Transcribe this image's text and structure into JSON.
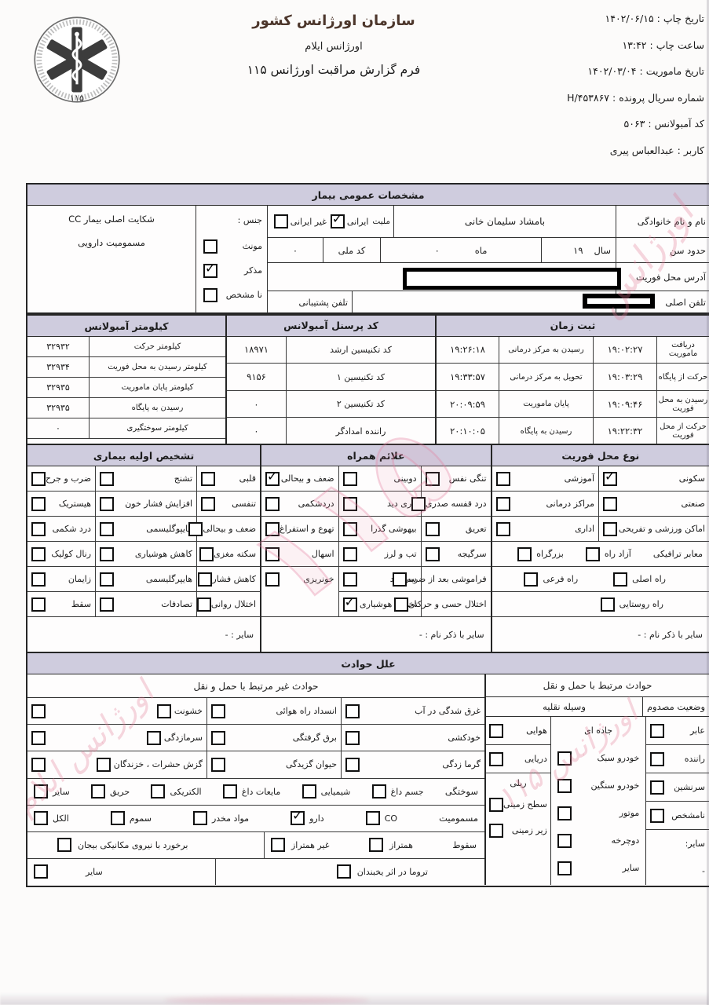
{
  "watermarks": [
    "۱۱۵",
    "اورژانس",
    "اورژانس ۱۱۵",
    "اورژانس ایلام"
  ],
  "header": {
    "org": "سازمان اورژانس کشور",
    "region": "اورژانس ایلام",
    "form": "فرم گزارش مراقبت اورژانس ۱۱۵",
    "logo_number": "۱۱۵"
  },
  "meta": {
    "rows": [
      {
        "label": "تاریخ چاپ",
        "value": "۱۴۰۲/۰۶/۱۵"
      },
      {
        "label": "ساعت چاپ",
        "value": "۱۳:۴۲"
      },
      {
        "label": "تاریخ ماموریت",
        "value": "۱۴۰۲/۰۳/۰۴"
      },
      {
        "label": "شماره سریال پرونده",
        "value": "H/۴۵۳۸۶۷"
      },
      {
        "label": "کد آمبولانس",
        "value": "۵۰۶۳"
      },
      {
        "label": "کاربر",
        "value": "عبدالعباس پیری"
      }
    ]
  },
  "patient": {
    "title": "مشخصات عمومی بیمار",
    "name_label": "نام و نام خانوادگی",
    "name_value": "بامشاد سلیمان خانی",
    "nat_label": "ملیت",
    "nat_iranian": {
      "l": "ایرانی",
      "c": true
    },
    "nat_foreign": {
      "l": "غیر ایرانی",
      "c": false
    },
    "age_label": "حدود سن",
    "year_label": "سال",
    "year_value": "۱۹",
    "month_label": "ماه",
    "month_value": "۰",
    "nid_label": "کد ملی",
    "nid_value": "۰",
    "address_label": "آدرس محل فوریت",
    "phone_label": "تلفن اصلی",
    "support_phone_label": "تلفن پشتیبانی",
    "gender_label": "جنس :",
    "genders": [
      {
        "l": "مونث",
        "c": false
      },
      {
        "l": "مذکر",
        "c": true
      },
      {
        "l": "نا مشخص",
        "c": false
      }
    ],
    "cc_label": "شکایت اصلی بیمار CC",
    "cc_value": "مسمومیت دارویی"
  },
  "time_log": {
    "title": "ثبت زمان",
    "rows": [
      {
        "l1": "دریافت ماموریت",
        "v1": "۱۹:۰۲:۲۷",
        "l2": "رسیدن به مرکز درمانی",
        "v2": "۱۹:۲۶:۱۸"
      },
      {
        "l1": "حرکت از پایگاه",
        "v1": "۱۹:۰۳:۲۹",
        "l2": "تحویل به مرکز درمانی",
        "v2": "۱۹:۳۳:۵۷"
      },
      {
        "l1": "رسیدن به محل فوریت",
        "v1": "۱۹:۰۹:۴۶",
        "l2": "پایان ماموریت",
        "v2": "۲۰:۰۹:۵۹"
      },
      {
        "l1": "حرکت از محل فوریت",
        "v1": "۱۹:۲۲:۳۲",
        "l2": "رسیدن به پایگاه",
        "v2": "۲۰:۱۰:۰۵"
      }
    ]
  },
  "personnel": {
    "title": "کد پرسنل آمبولانس",
    "rows": [
      {
        "l": "کد تکنیسین ارشد",
        "v": "۱۸۹۷۱"
      },
      {
        "l": "کد تکنیسین ۱",
        "v": "۹۱۵۶"
      },
      {
        "l": "کد تکنیسین ۲",
        "v": "۰"
      },
      {
        "l": "راننده امدادگر",
        "v": "۰"
      }
    ]
  },
  "odometer": {
    "title": "کیلومتر آمبولانس",
    "rows": [
      {
        "l": "کیلومتر حرکت",
        "v": "۳۲۹۳۲"
      },
      {
        "l": "کیلومتر رسیدن به محل فوریت",
        "v": "۳۲۹۳۴"
      },
      {
        "l": "کیلومتر پایان ماموریت",
        "v": "۳۲۹۳۵"
      },
      {
        "l": "رسیدن به پایگاه",
        "v": "۳۲۹۳۵"
      },
      {
        "l": "کیلومتر سوختگیری",
        "v": "۰"
      }
    ]
  },
  "diagnosis": {
    "title": "تشخیص اولیه بیماری",
    "right": [
      {
        "l": "قلبی",
        "c": false
      },
      {
        "l": "تنفسی",
        "c": false
      },
      {
        "l": "ضعف و بیحالی",
        "c": false
      },
      {
        "l": "سکته مغزی",
        "c": false
      },
      {
        "l": "کاهش فشار",
        "c": false
      },
      {
        "l": "اختلال روانی",
        "c": false
      }
    ],
    "mid": [
      {
        "l": "تشنج",
        "c": false
      },
      {
        "l": "افزایش فشار خون",
        "c": false
      },
      {
        "l": "هایپوگلیسمی",
        "c": false
      },
      {
        "l": "کاهش هوشیاری",
        "c": false
      },
      {
        "l": "هایپرگلیسمی",
        "c": false
      },
      {
        "l": "تصادفات",
        "c": false
      }
    ],
    "left": [
      {
        "l": "ضرب و جرح",
        "c": false
      },
      {
        "l": "هیستریک",
        "c": false
      },
      {
        "l": "درد شکمی",
        "c": false
      },
      {
        "l": "رنال کولیک",
        "c": false
      },
      {
        "l": "زایمان",
        "c": false
      },
      {
        "l": "سقط",
        "c": false
      }
    ],
    "other": "سایر : -"
  },
  "symptoms": {
    "title": "علائم همراه",
    "right": [
      {
        "l": "تنگی نفس",
        "c": false
      },
      {
        "l": "درد قفسه صدری",
        "c": false
      },
      {
        "l": "تعریق",
        "c": false
      },
      {
        "l": "سرگیجه",
        "c": false
      },
      {
        "l": "فراموشی بعد از ضربه",
        "c": false
      },
      {
        "l": "اختلال حسی و حرکتی",
        "c": false
      }
    ],
    "mid": [
      {
        "l": "دوبینی",
        "c": false
      },
      {
        "l": "تاری دید",
        "c": false
      },
      {
        "l": "بیهوشی گذرا",
        "c": false
      },
      {
        "l": "تب و لرز",
        "c": false
      },
      {
        "l": "سر درد",
        "c": false
      },
      {
        "l": "اختلال هوشیاری",
        "c": true
      }
    ],
    "left": [
      {
        "l": "ضعف و بیحالی",
        "c": true
      },
      {
        "l": "دردشکمی",
        "c": false
      },
      {
        "l": "تهوع و استفراغ",
        "c": false
      },
      {
        "l": "اسهال",
        "c": false
      },
      {
        "l": "خونریزی",
        "c": false
      }
    ],
    "other": "سایر با ذکر نام : -"
  },
  "location": {
    "title": "نوع محل فوریت",
    "pairs": [
      {
        "r": {
          "l": "سکونی",
          "c": true
        },
        "l": {
          "l": "آموزشی",
          "c": false
        }
      },
      {
        "r": {
          "l": "صنعتی",
          "c": false
        },
        "l": {
          "l": "مراکز درمانی",
          "c": false
        }
      },
      {
        "r": {
          "l": "اماکن ورزشی و تفریحی",
          "c": false
        },
        "l": {
          "l": "اداری",
          "c": false
        }
      }
    ],
    "roads_label": "معابر ترافیکی",
    "road1": {
      "l": "آزاد راه",
      "c": false
    },
    "road2": {
      "l": "بزرگراه",
      "c": false
    },
    "road3": {
      "l": "راه اصلی",
      "c": false
    },
    "road4": {
      "l": "راه فرعی",
      "c": false
    },
    "road5": {
      "l": "راه روستایی",
      "c": false
    },
    "other": "سایر با ذکر نام : -"
  },
  "causes": {
    "title": "علل حوادث",
    "transport": {
      "title": "حوادث مرتبط با حمل و نقل",
      "victim_title": "وضعیت مصدوم",
      "vehicle_title": "وسیله نقلیه",
      "victims": [
        {
          "l": "عابر",
          "c": false
        },
        {
          "l": "راننده",
          "c": false
        },
        {
          "l": "سرنشین",
          "c": false
        },
        {
          "l": "نامشخص",
          "c": false
        },
        {
          "l": "سایر:"
        },
        {
          "l": "-"
        }
      ],
      "road": [
        {
          "l": "جاده ای"
        },
        {
          "l": "خودرو سبک",
          "c": false
        },
        {
          "l": "خودرو سنگین",
          "c": false
        },
        {
          "l": "موتور",
          "c": false
        },
        {
          "l": "دوچرخه",
          "c": false
        },
        {
          "l": "سایر",
          "c": false
        }
      ],
      "modes": [
        {
          "l": "هوایی",
          "c": false
        },
        {
          "l": "دریایی",
          "c": false
        },
        {
          "l": "ریلی"
        },
        {
          "l": "سطح زمینی",
          "c": false
        },
        {
          "l": "زیر زمینی",
          "c": false
        }
      ]
    },
    "non_transport": {
      "title": "حوادث غیر مرتبط با حمل و نقل",
      "grid": [
        [
          {
            "l": "غرق شدگی در آب",
            "c": false
          },
          {
            "l": "انسداد راه هوائی",
            "c": false
          },
          {
            "l": "خشونت",
            "c": false
          }
        ],
        [
          {
            "l": "خودکشی",
            "c": false
          },
          {
            "l": "برق گرفتگی",
            "c": false
          },
          {
            "l": "سرمازدگی",
            "c": false
          }
        ],
        [
          {
            "l": "گرما زدگی",
            "c": false
          },
          {
            "l": "حیوان گزیدگی",
            "c": false
          },
          {
            "l": "گزش حشرات ، خزندگان",
            "c": false
          }
        ]
      ],
      "burns_label": "سوختگی",
      "burns": [
        {
          "l": "جسم داغ",
          "c": false
        },
        {
          "l": "شیمیایی",
          "c": false
        },
        {
          "l": "مایعات داغ",
          "c": false
        },
        {
          "l": "الکتریکی",
          "c": false
        },
        {
          "l": "حریق",
          "c": false
        },
        {
          "l": "سایر",
          "c": false
        }
      ],
      "poison_label": "مسمومیت",
      "poison": [
        {
          "l": "CO",
          "c": false
        },
        {
          "l": "دارو",
          "c": true
        },
        {
          "l": "مواد مخدر",
          "c": false
        },
        {
          "l": "سموم",
          "c": false
        },
        {
          "l": "الکل",
          "c": false
        }
      ],
      "fall_label": "سقوط",
      "fall": [
        {
          "l": "همتراز",
          "c": false
        },
        {
          "l": "غیر همتراز",
          "c": false
        }
      ],
      "mech": {
        "l": "برخورد با نیروی مکانیکی بیجان",
        "c": false
      },
      "ice": {
        "l": "تروما در اثر یخبندان",
        "c": false
      },
      "other": {
        "l": "سایر",
        "c": false
      }
    }
  }
}
